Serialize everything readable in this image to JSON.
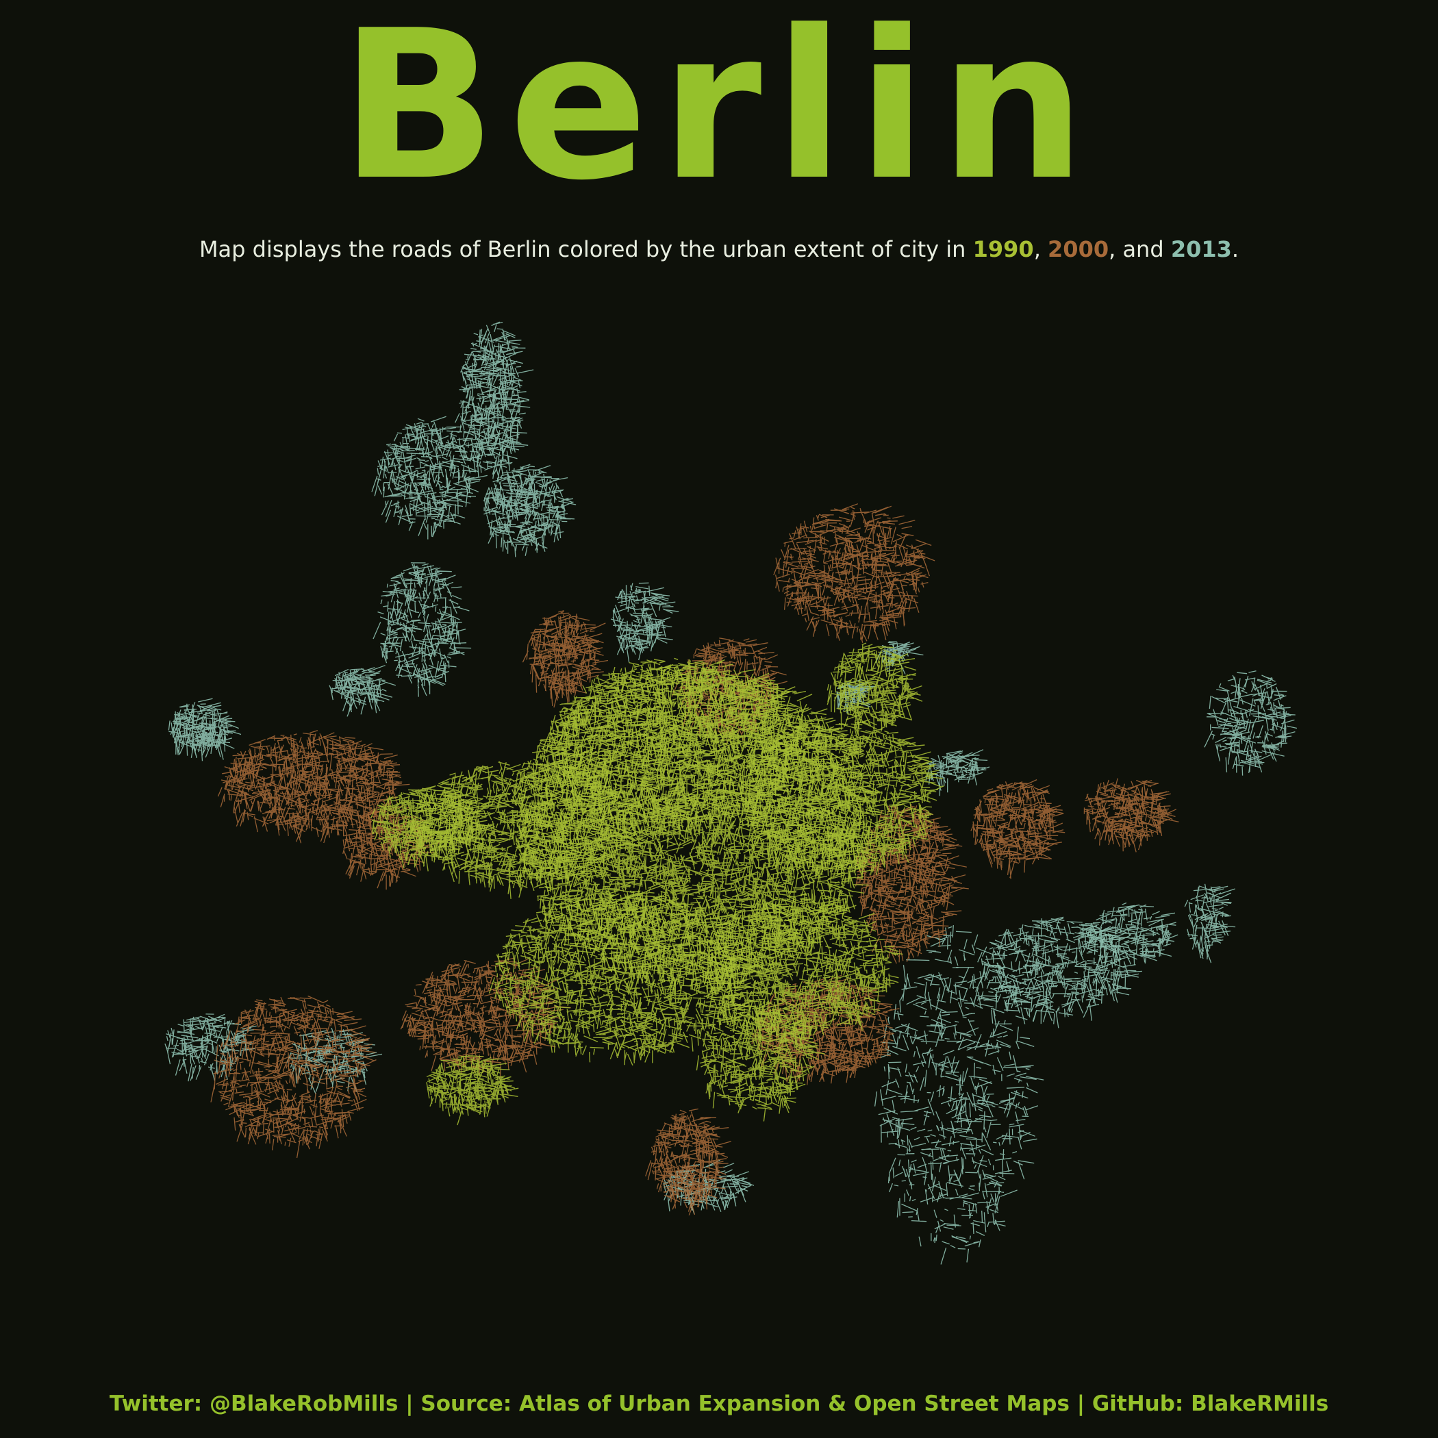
{
  "title": "Berlin",
  "subtitle": {
    "before": "Map displays the roads of Berlin colored by the urban extent of city in ",
    "year1": "1990",
    "sep1": ", ",
    "year2": "2000",
    "sep2": ", and ",
    "year3": "2013",
    "after": "."
  },
  "legend": [
    {
      "year": "1990",
      "color": "#a8c034"
    },
    {
      "year": "2000",
      "color": "#a86b3a"
    },
    {
      "year": "2013",
      "color": "#8dbfae"
    }
  ],
  "footer": "Twitter: @BlakeRobMills | Source: Atlas of Urban Expansion & Open Street Maps | GitHub: BlakeRMills"
}
